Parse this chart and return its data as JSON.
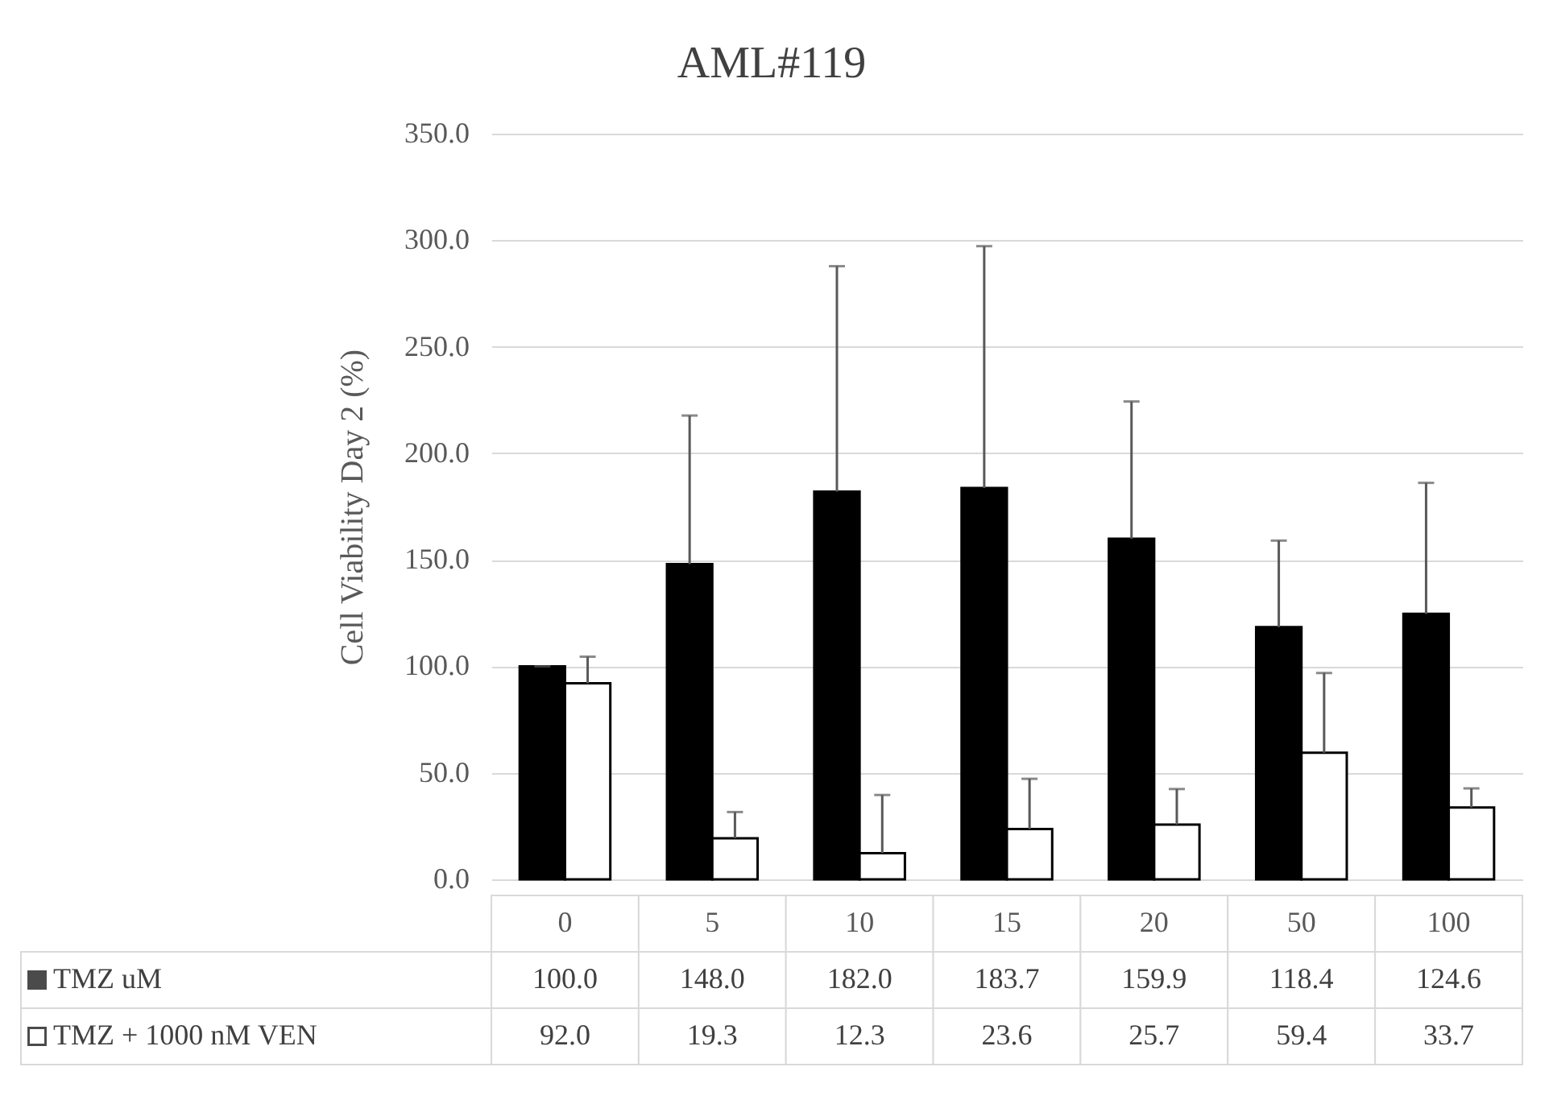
{
  "chart_data": {
    "type": "bar",
    "title": "AML#119",
    "ylabel": "Cell Viability Day 2 (%)",
    "categories": [
      "0",
      "5",
      "10",
      "15",
      "20",
      "50",
      "100"
    ],
    "series": [
      {
        "name": "TMZ uM",
        "color": "#000000",
        "values": [
          100.0,
          148.0,
          182.0,
          183.7,
          159.9,
          118.4,
          124.6
        ],
        "value_labels": [
          "100.0",
          "148.0",
          "182.0",
          "183.7",
          "159.9",
          "118.4",
          "124.6"
        ],
        "errors": [
          [
            100.0,
            100.0
          ],
          [
            148.0,
            217.7
          ],
          [
            182.0,
            287.8
          ],
          [
            183.7,
            297.2
          ],
          [
            159.9,
            224.3
          ],
          [
            118.4,
            159.0
          ],
          [
            124.6,
            186.1
          ]
        ]
      },
      {
        "name": "TMZ + 1000 nM VEN",
        "color": "#ffffff",
        "values": [
          92.0,
          19.3,
          12.3,
          23.6,
          25.7,
          59.4,
          33.7
        ],
        "value_labels": [
          "92.0",
          "19.3",
          "12.3",
          "23.6",
          "25.7",
          "59.4",
          "33.7"
        ],
        "errors": [
          [
            92.0,
            104.5
          ],
          [
            19.3,
            31.6
          ],
          [
            12.3,
            39.6
          ],
          [
            23.6,
            47.2
          ],
          [
            25.7,
            42.4
          ],
          [
            59.4,
            96.9
          ],
          [
            33.7,
            42.7
          ]
        ]
      }
    ],
    "ylim": [
      0,
      350
    ],
    "yticks": [
      {
        "value": 0,
        "label": "0.0"
      },
      {
        "value": 50,
        "label": "50.0"
      },
      {
        "value": 100,
        "label": "100.0"
      },
      {
        "value": 150,
        "label": "150.0"
      },
      {
        "value": 200,
        "label": "200.0"
      },
      {
        "value": 250,
        "label": "250.0"
      },
      {
        "value": 300,
        "label": "300.0"
      },
      {
        "value": 350,
        "label": "350.0"
      }
    ],
    "grid": "y",
    "legend": "bottom left"
  }
}
